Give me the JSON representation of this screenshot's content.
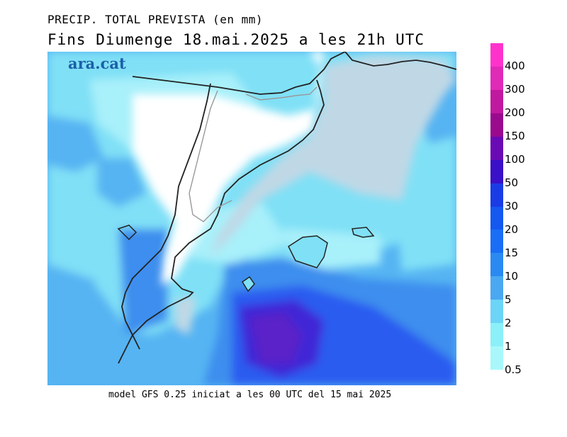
{
  "title_line1": "PRECIP. TOTAL PREVISTA (en mm)",
  "title_line2": "Fins Diumenge 18.mai.2025 a les 21h UTC",
  "footer": "model GFS 0.25 iniciat a les 00 UTC del 15 mai 2025",
  "logo": "ara.cat",
  "legend": {
    "labels": [
      "400",
      "300",
      "200",
      "150",
      "100",
      "50",
      "30",
      "20",
      "15",
      "10",
      "5",
      "2",
      "1",
      "0.5"
    ],
    "colors": [
      "#ff33cc",
      "#e02ab8",
      "#c0199f",
      "#9a0a8f",
      "#6a0ab4",
      "#3a10c8",
      "#1a3ce6",
      "#1458f0",
      "#1a6ef5",
      "#2a8af2",
      "#4aa8f2",
      "#6cd4f7",
      "#8cf0f9",
      "#a8f8fb"
    ]
  },
  "map_colors": {
    "land_dry": "#ffffff",
    "sea_dry": "#c0d8e6",
    "light_cyan": "#a8f0fa",
    "cyan": "#80e0f6",
    "blue": "#56b4f2",
    "mid_blue": "#3c8eee",
    "deep_blue": "#2a5cf0",
    "purple": "#5a22c8"
  }
}
